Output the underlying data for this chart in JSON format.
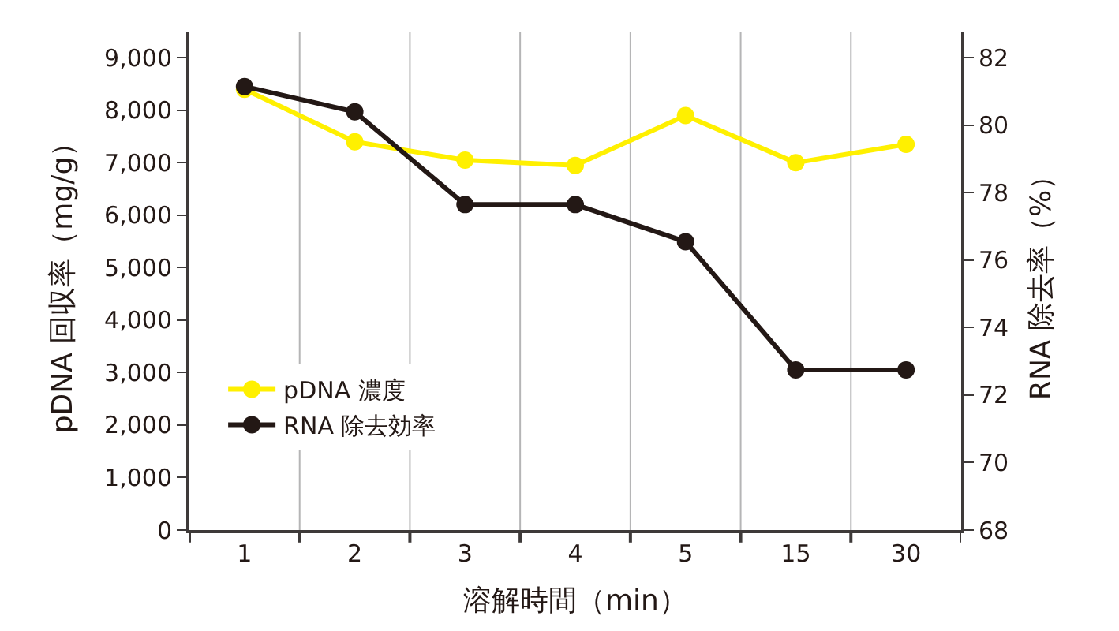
{
  "chart_data": {
    "type": "line",
    "xlabel": "溶解時間（min）",
    "ylabel": "pDNA 回収率（mg/g）",
    "y2label": "RNA 除去率（%）",
    "categories": [
      "1",
      "2",
      "3",
      "4",
      "5",
      "15",
      "30"
    ],
    "series": [
      {
        "name": "pDNA 濃度",
        "color": "#fff000",
        "values": [
          8400,
          7400,
          7050,
          6950,
          7900,
          7000,
          7350
        ]
      },
      {
        "name": "RNA 除去効率",
        "color": "#231815",
        "axis": "y2",
        "values": [
          81.15,
          80.4,
          77.65,
          77.65,
          76.55,
          72.75,
          72.75
        ]
      }
    ],
    "ylim": [
      0,
      9500
    ],
    "yticks": [
      {
        "value": 0,
        "label": "0"
      },
      {
        "value": 1000,
        "label": "1,000"
      },
      {
        "value": 2000,
        "label": "2,000"
      },
      {
        "value": 3000,
        "label": "3,000"
      },
      {
        "value": 4000,
        "label": "4,000"
      },
      {
        "value": 5000,
        "label": "5,000"
      },
      {
        "value": 6000,
        "label": "6,000"
      },
      {
        "value": 7000,
        "label": "7,000"
      },
      {
        "value": 8000,
        "label": "8,000"
      },
      {
        "value": 9000,
        "label": "9,000"
      }
    ],
    "y2lim": [
      68,
      82.78
    ],
    "y2ticks": [
      68,
      70,
      72,
      74,
      76,
      78,
      80,
      82
    ],
    "grid": "x",
    "legend": "bottom left",
    "marker": "circle",
    "line_style": "solid"
  }
}
